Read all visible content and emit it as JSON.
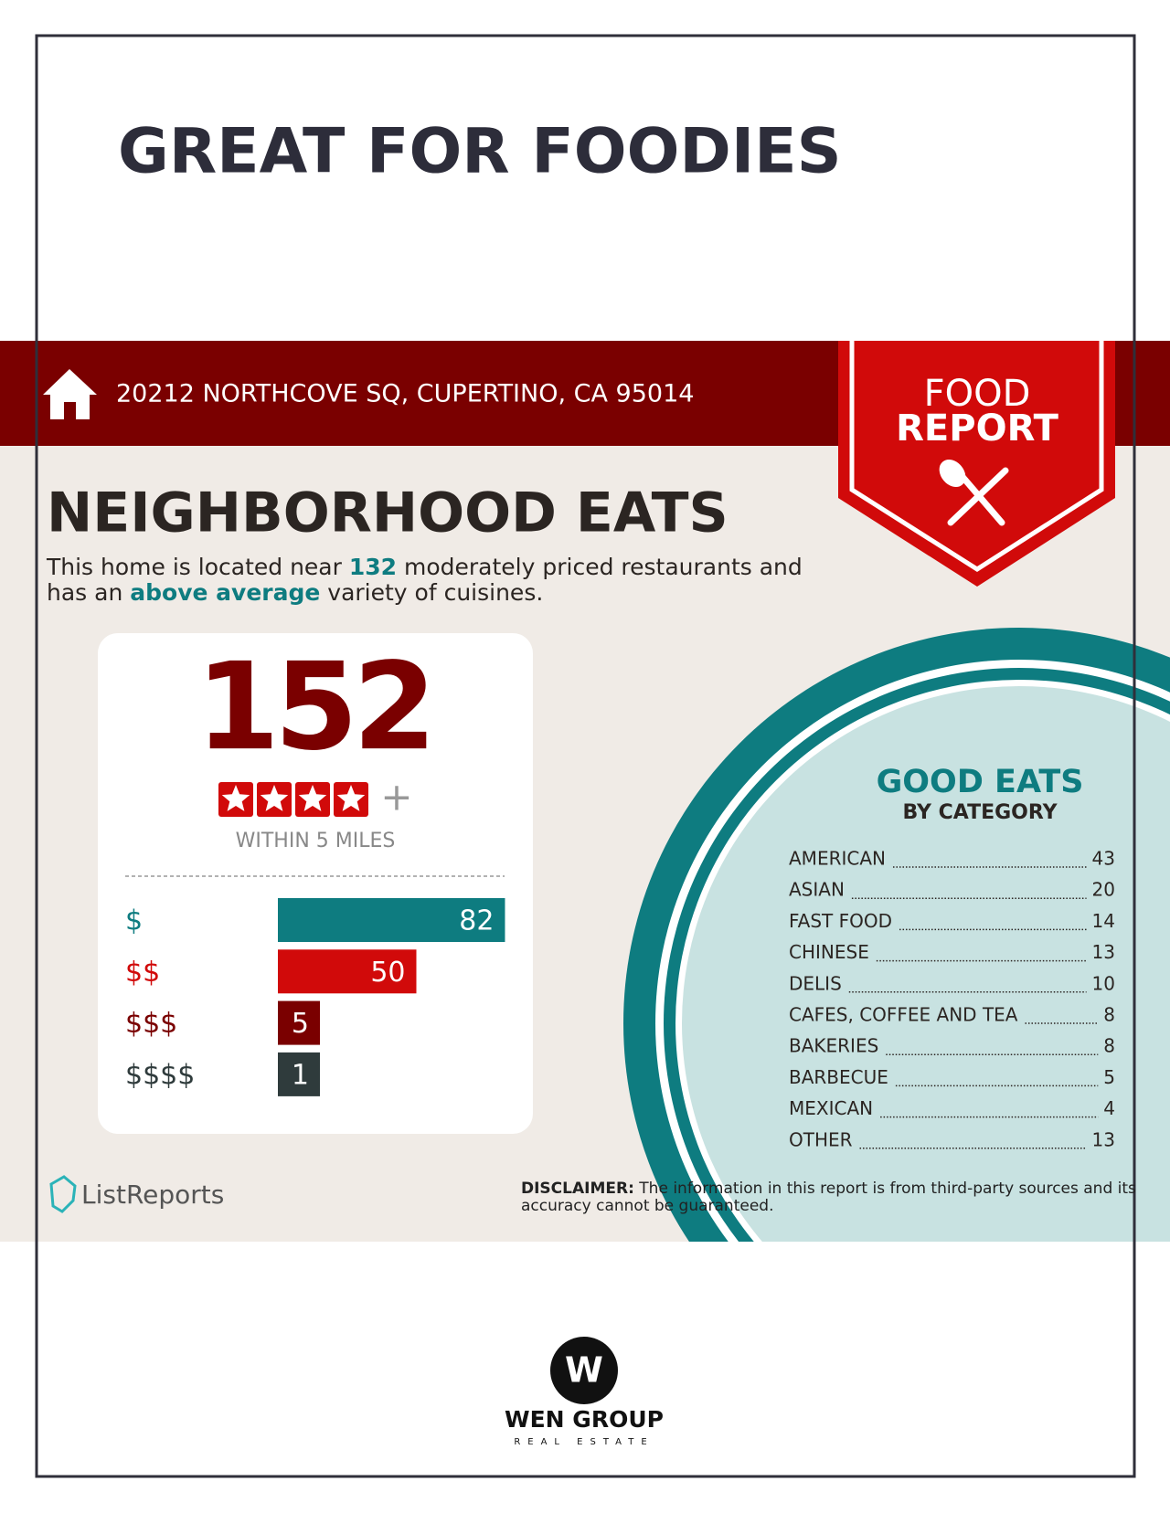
{
  "header": {
    "title": "GREAT FOR FOODIES"
  },
  "banner": {
    "address": "20212 NORTHCOVE SQ, CUPERTINO, CA 95014",
    "badge": [
      "FOOD",
      "REPORT"
    ]
  },
  "section": {
    "title": "NEIGHBORHOOD EATS",
    "intro": [
      [
        "This home is located near ",
        "132",
        " moderately priced restaurants and"
      ],
      [
        "has an ",
        "above average",
        " variety of cuisines."
      ]
    ]
  },
  "summary": {
    "count": "152",
    "plus": "+",
    "note": "WITHIN 5 MILES"
  },
  "price_levels": {
    "rows": [
      {
        "label": "$",
        "value": 82,
        "color": "#0e7c80"
      },
      {
        "label": "$$",
        "value": 50,
        "color": "#d10a0a"
      },
      {
        "label": "$$$",
        "value": 5,
        "color": "#7a0000"
      },
      {
        "label": "$$$$",
        "value": 1,
        "color": "#2f3b3c"
      }
    ]
  },
  "categories": {
    "title": "GOOD EATS",
    "subtitle": "BY CATEGORY",
    "items": [
      {
        "name": "AMERICAN",
        "count": 43
      },
      {
        "name": "ASIAN",
        "count": 20
      },
      {
        "name": "FAST FOOD",
        "count": 14
      },
      {
        "name": "CHINESE",
        "count": 13
      },
      {
        "name": "DELIS",
        "count": 10
      },
      {
        "name": "CAFES, COFFEE AND TEA",
        "count": 8
      },
      {
        "name": "BAKERIES",
        "count": 8
      },
      {
        "name": "BARBECUE",
        "count": 5
      },
      {
        "name": "MEXICAN",
        "count": 4
      },
      {
        "name": "OTHER",
        "count": 13
      }
    ]
  },
  "footer": {
    "brand": "ListReports",
    "disclaimer_label": "DISCLAIMER:",
    "disclaimer": [
      " The information in this report is from third-party sources and its",
      "accuracy cannot be guaranteed."
    ],
    "logo_letter": "W",
    "logo_name": "WEN GROUP",
    "logo_sub": "REAL ESTATE"
  }
}
